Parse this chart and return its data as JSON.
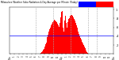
{
  "background_color": "#ffffff",
  "bar_color": "#ff0000",
  "avg_line_color": "#0000ff",
  "avg_value": 0.42,
  "ylim": [
    0,
    1.05
  ],
  "xlim_min": -0.5,
  "xlim_max": 143.5,
  "legend_box1_color": "#0000ff",
  "legend_box2_color": "#ff0000",
  "bar_values": [
    0,
    0,
    0,
    0,
    0,
    0,
    0,
    0,
    0,
    0,
    0,
    0,
    0,
    0,
    0,
    0,
    0,
    0,
    0,
    0,
    0,
    0,
    0,
    0,
    0,
    0,
    0,
    0,
    0,
    0,
    0,
    0,
    0,
    0,
    0,
    0,
    0,
    0,
    0,
    0,
    0,
    0,
    0.01,
    0.02,
    0.04,
    0.06,
    0.09,
    0.12,
    0.16,
    0.21,
    0.26,
    0.32,
    0.38,
    0.44,
    0.5,
    0.55,
    0.6,
    0.64,
    0.68,
    0.71,
    0.73,
    0.75,
    0.76,
    0.75,
    0.73,
    0.71,
    0.68,
    0.65,
    0.61,
    0.7,
    0.82,
    0.95,
    1.0,
    0.97,
    0.6,
    0.5,
    0.75,
    0.85,
    0.7,
    0.6,
    0.72,
    0.78,
    0.8,
    0.84,
    0.86,
    0.87,
    0.88,
    0.86,
    0.83,
    0.79,
    0.75,
    0.7,
    0.65,
    0.6,
    0.55,
    0.5,
    0.45,
    0.4,
    0.36,
    0.32,
    0.28,
    0.24,
    0.2,
    0.17,
    0.13,
    0.1,
    0.07,
    0.05,
    0.03,
    0.01,
    0,
    0,
    0,
    0,
    0,
    0,
    0,
    0,
    0,
    0,
    0,
    0,
    0,
    0,
    0,
    0,
    0,
    0,
    0,
    0,
    0,
    0,
    0,
    0,
    0,
    0,
    0,
    0,
    0,
    0
  ],
  "ytick_labels": [
    ".2",
    ".4",
    ".6",
    ".8",
    "1"
  ],
  "ytick_positions": [
    0.2,
    0.4,
    0.6,
    0.8,
    1.0
  ],
  "grid_x_positions": [
    36,
    60,
    84,
    108,
    120
  ],
  "xtick_step": 6,
  "xtick_labels": [
    "12a",
    "1",
    "2",
    "3",
    "4",
    "5",
    "6",
    "7",
    "8",
    "9",
    "10",
    "11",
    "12p",
    "1",
    "2",
    "3",
    "4",
    "5",
    "6",
    "7",
    "8",
    "9",
    "10",
    "11",
    "12a"
  ]
}
